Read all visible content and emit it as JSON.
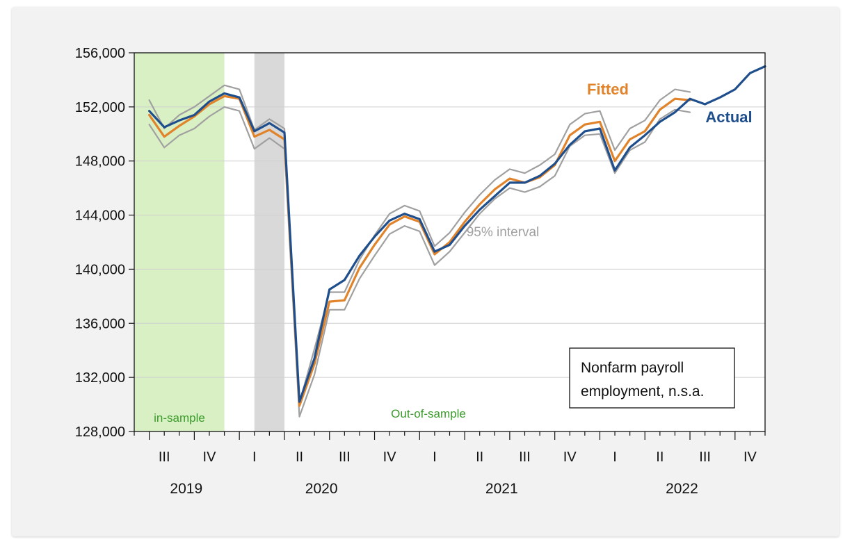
{
  "chart_data": {
    "type": "line",
    "ylim": [
      128000,
      156000
    ],
    "yticks": [
      128000,
      132000,
      136000,
      140000,
      144000,
      148000,
      152000,
      156000
    ],
    "ytick_labels": [
      "128,000",
      "132,000",
      "136,000",
      "140,000",
      "144,000",
      "148,000",
      "152,000",
      "156,000"
    ],
    "x": [
      "2019-07",
      "2019-08",
      "2019-09",
      "2019-10",
      "2019-11",
      "2019-12",
      "2020-01",
      "2020-02",
      "2020-03",
      "2020-04",
      "2020-05",
      "2020-06",
      "2020-07",
      "2020-08",
      "2020-09",
      "2020-10",
      "2020-11",
      "2020-12",
      "2021-01",
      "2021-02",
      "2021-03",
      "2021-04",
      "2021-05",
      "2021-06",
      "2021-07",
      "2021-08",
      "2021-09",
      "2021-10",
      "2021-11",
      "2021-12",
      "2022-01",
      "2022-02",
      "2022-03",
      "2022-04",
      "2022-05",
      "2022-06",
      "2022-07",
      "2022-08",
      "2022-09",
      "2022-10",
      "2022-11",
      "2022-12"
    ],
    "xlim": [
      "2019-06",
      "2022-12"
    ],
    "quarter_labels": [
      {
        "label": "III",
        "month": "2019-08"
      },
      {
        "label": "IV",
        "month": "2019-11"
      },
      {
        "label": "I",
        "month": "2020-02"
      },
      {
        "label": "II",
        "month": "2020-05"
      },
      {
        "label": "III",
        "month": "2020-08"
      },
      {
        "label": "IV",
        "month": "2020-11"
      },
      {
        "label": "I",
        "month": "2021-02"
      },
      {
        "label": "II",
        "month": "2021-05"
      },
      {
        "label": "III",
        "month": "2021-08"
      },
      {
        "label": "IV",
        "month": "2021-11"
      },
      {
        "label": "I",
        "month": "2022-02"
      },
      {
        "label": "II",
        "month": "2022-05"
      },
      {
        "label": "III",
        "month": "2022-08"
      },
      {
        "label": "IV",
        "month": "2022-11"
      }
    ],
    "year_labels": [
      {
        "label": "2019",
        "month": "2019-09"
      },
      {
        "label": "2020",
        "month": "2020-06"
      },
      {
        "label": "2021",
        "month": "2021-06"
      },
      {
        "label": "2022",
        "month": "2022-06"
      }
    ],
    "series": [
      {
        "name": "Actual",
        "color": "#1f4e8c",
        "width": 3.2,
        "values": [
          151700,
          150500,
          151000,
          151400,
          152400,
          153000,
          152700,
          150200,
          150800,
          150100,
          130200,
          133400,
          138500,
          139200,
          141000,
          142400,
          143600,
          144100,
          143700,
          141300,
          141800,
          143200,
          144400,
          145400,
          146400,
          146400,
          146900,
          147800,
          149200,
          150200,
          150400,
          147300,
          149000,
          149900,
          150900,
          151600,
          152600,
          152200,
          152700,
          153300,
          154500,
          155000
        ]
      },
      {
        "name": "Fitted",
        "color": "#e0832a",
        "width": 3.2,
        "values": [
          151400,
          149800,
          150600,
          151300,
          152200,
          152800,
          152600,
          149800,
          150300,
          149600,
          129900,
          133000,
          137600,
          137700,
          140100,
          141800,
          143300,
          143900,
          143500,
          141100,
          142000,
          143500,
          144800,
          145900,
          146700,
          146400,
          146800,
          147700,
          149900,
          150700,
          150900,
          148000,
          149600,
          150200,
          151800,
          152600,
          152500,
          null,
          null,
          null,
          null,
          null
        ]
      },
      {
        "name": "95% interval",
        "color": "#a0a0a0",
        "width": 2.2,
        "values": [
          152500,
          150400,
          151400,
          152000,
          152800,
          153600,
          153300,
          150300,
          151100,
          150400,
          130100,
          134100,
          138300,
          138300,
          140700,
          142500,
          144100,
          144700,
          144300,
          141700,
          142700,
          144200,
          145500,
          146600,
          147400,
          147100,
          147700,
          148500,
          150700,
          151500,
          151700,
          148800,
          150400,
          151000,
          152500,
          153300,
          153100,
          null,
          null,
          null,
          null,
          null
        ]
      },
      {
        "name": "95% interval lower",
        "color": "#a0a0a0",
        "width": 2.2,
        "values": [
          150700,
          149000,
          149900,
          150400,
          151300,
          152000,
          151700,
          148900,
          149700,
          148900,
          129100,
          132200,
          137000,
          137000,
          139300,
          141000,
          142600,
          143200,
          142800,
          140300,
          141300,
          142700,
          144100,
          145200,
          146000,
          145700,
          146100,
          146900,
          149100,
          149900,
          150000,
          147100,
          148800,
          149400,
          151100,
          151800,
          151600,
          null,
          null,
          null,
          null,
          null
        ]
      }
    ],
    "shaded_regions": [
      {
        "label": "in-sample",
        "start": "2019-06",
        "end": "2019-12",
        "color": "#d9f0c4"
      },
      {
        "label": "",
        "start": "2020-02",
        "end": "2020-04",
        "color": "#d9d9d9"
      }
    ],
    "annotations": [
      {
        "text": "Fitted",
        "color": "#e0832a"
      },
      {
        "text": "Actual",
        "color": "#1f4e8c"
      },
      {
        "text": "95% interval",
        "color": "#a0a0a0"
      },
      {
        "text": "in-sample",
        "color": "#3a9a2a"
      },
      {
        "text": "Out-of-sample",
        "color": "#3a9a2a"
      }
    ],
    "box_label": [
      "Nonfarm payroll",
      "employment, n.s.a."
    ],
    "grid": true
  }
}
